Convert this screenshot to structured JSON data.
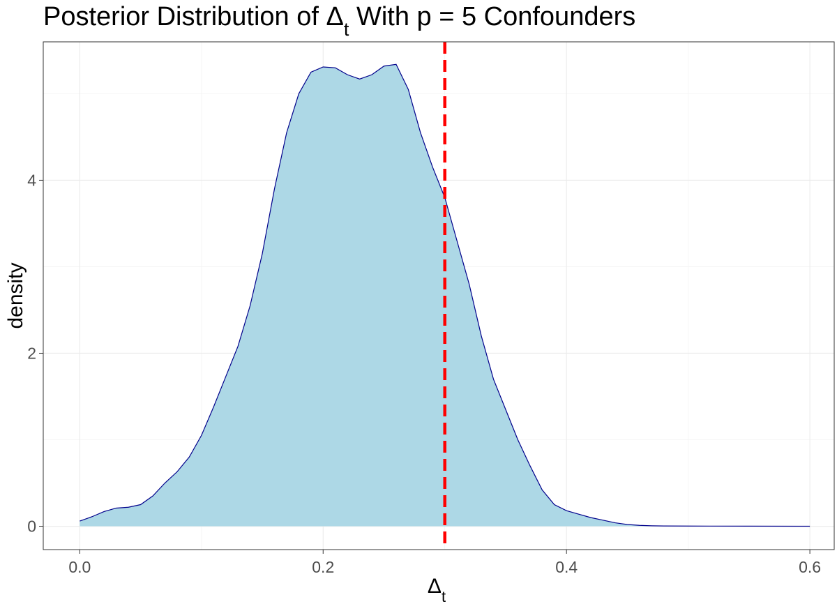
{
  "chart_data": {
    "type": "area",
    "title": "Posterior Distribution of Δ",
    "title_subscript": "t",
    "title_suffix": " With p = 5 Confounders",
    "xlabel": "Δ",
    "xlabel_subscript": "t",
    "ylabel": "density",
    "xlim": [
      -0.03,
      0.62
    ],
    "ylim": [
      -0.27,
      5.6
    ],
    "x_ticks": [
      0.0,
      0.2,
      0.4,
      0.6
    ],
    "x_tick_labels": [
      "0.0",
      "0.2",
      "0.4",
      "0.6"
    ],
    "y_ticks": [
      0,
      2,
      4
    ],
    "y_tick_labels": [
      "0",
      "2",
      "4"
    ],
    "grid": true,
    "legend": "none",
    "colors": {
      "fill": "#add8e6",
      "outline": "#00008b",
      "reference_line": "#ff0000"
    },
    "reference_line": {
      "x": 0.3,
      "style": "dashed"
    },
    "series": [
      {
        "x": [
          0.0,
          0.01,
          0.02,
          0.03,
          0.04,
          0.05,
          0.06,
          0.07,
          0.08,
          0.09,
          0.1,
          0.11,
          0.12,
          0.13,
          0.14,
          0.15,
          0.16,
          0.17,
          0.18,
          0.19,
          0.2,
          0.21,
          0.22,
          0.23,
          0.24,
          0.25,
          0.26,
          0.27,
          0.28,
          0.29,
          0.3,
          0.31,
          0.32,
          0.33,
          0.34,
          0.35,
          0.36,
          0.37,
          0.38,
          0.39,
          0.4,
          0.41,
          0.42,
          0.43,
          0.44,
          0.45,
          0.46,
          0.47,
          0.48,
          0.5,
          0.55,
          0.6
        ],
        "y": [
          0.06,
          0.11,
          0.17,
          0.21,
          0.22,
          0.25,
          0.35,
          0.5,
          0.63,
          0.8,
          1.05,
          1.38,
          1.73,
          2.08,
          2.55,
          3.15,
          3.9,
          4.55,
          5.0,
          5.25,
          5.31,
          5.3,
          5.22,
          5.17,
          5.22,
          5.32,
          5.34,
          5.05,
          4.55,
          4.15,
          3.8,
          3.3,
          2.8,
          2.2,
          1.7,
          1.35,
          1.0,
          0.7,
          0.42,
          0.25,
          0.18,
          0.14,
          0.1,
          0.07,
          0.04,
          0.02,
          0.01,
          0.005,
          0.003,
          0.002,
          0.001,
          0.0
        ]
      }
    ]
  }
}
